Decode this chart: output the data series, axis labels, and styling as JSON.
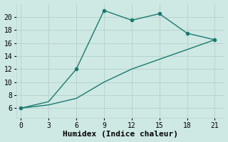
{
  "xlabel": "Humidex (Indice chaleur)",
  "line1_x": [
    0,
    3,
    6,
    9,
    12,
    15,
    18,
    21
  ],
  "line1_y": [
    6,
    7.0,
    12,
    21,
    19.5,
    20.5,
    17.5,
    16.5
  ],
  "line1_markers_x": [
    0,
    6,
    9,
    12,
    15,
    18,
    21
  ],
  "line1_markers_y": [
    6,
    12,
    21,
    19.5,
    20.5,
    17.5,
    16.5
  ],
  "line2_x": [
    0,
    3,
    6,
    9,
    12,
    15,
    18,
    21
  ],
  "line2_y": [
    6,
    6.5,
    7.5,
    10,
    12,
    13.5,
    15,
    16.5
  ],
  "line_color": "#1a7a6e",
  "bg_color": "#cee8e4",
  "grid_color": "#b8d4d0",
  "xlim": [
    -0.5,
    22
  ],
  "ylim": [
    4.5,
    22
  ],
  "xticks": [
    0,
    3,
    6,
    9,
    12,
    15,
    18,
    21
  ],
  "yticks": [
    6,
    8,
    10,
    12,
    14,
    16,
    18,
    20
  ],
  "marker": "o",
  "marker_size": 3,
  "line_width": 1.0,
  "font_family": "monospace",
  "xlabel_fontsize": 8,
  "tick_fontsize": 7
}
